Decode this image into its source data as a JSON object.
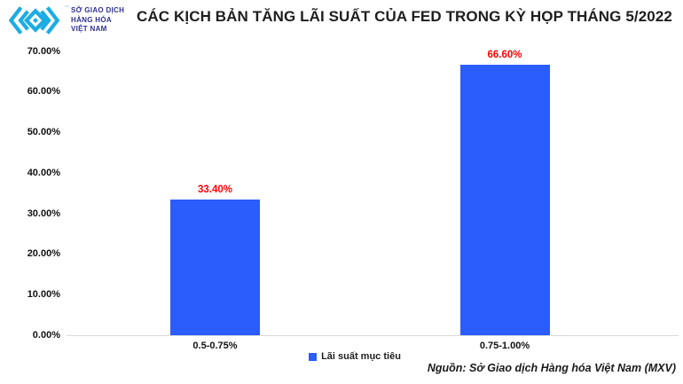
{
  "header": {
    "logo": {
      "line1": "SỞ GIAO DỊCH",
      "line2": "HÀNG HÓA",
      "line3": "VIỆT NAM",
      "trademark": "™",
      "mark_color": "#1bace4",
      "text_color": "#2e3192"
    },
    "title": "CÁC KỊCH BẢN TĂNG LÃI SUẤT CỦA FED TRONG KỲ HỌP THÁNG 5/2022"
  },
  "chart_data": {
    "type": "bar",
    "title": "CÁC KỊCH BẢN TĂNG LÃI SUẤT CỦA FED TRONG KỲ HỌP THÁNG 5/2022",
    "categories": [
      "0.5-0.75%",
      "0.75-1.00%"
    ],
    "series": [
      {
        "name": "Lãi suất mục tiêu",
        "values": [
          33.4,
          66.6
        ]
      }
    ],
    "data_labels": [
      "33.40%",
      "66.60%"
    ],
    "xlabel": "",
    "ylabel": "",
    "ylim": [
      0,
      70
    ],
    "ytick_step": 10,
    "ytick_labels": [
      "0.00%",
      "10.00%",
      "20.00%",
      "30.00%",
      "40.00%",
      "50.00%",
      "60.00%",
      "70.00%"
    ],
    "grid": false,
    "legend_position": "bottom",
    "bar_color": "#2b5dfc",
    "data_label_color": "#ff0000"
  },
  "legend": {
    "label": "Lãi suất mục tiêu",
    "swatch_color": "#2b5dfc"
  },
  "footer": {
    "source": "Nguồn: Sở Giao dịch Hàng hóa Việt Nam (MXV)"
  }
}
